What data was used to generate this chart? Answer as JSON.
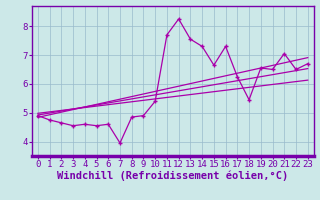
{
  "xlabel": "Windchill (Refroidissement éolien,°C)",
  "bg_color": "#cce8e8",
  "line_color": "#aa00aa",
  "grid_color": "#99bbcc",
  "axis_bar_color": "#7700aa",
  "x_data": [
    0,
    1,
    2,
    3,
    4,
    5,
    6,
    7,
    8,
    9,
    10,
    11,
    12,
    13,
    14,
    15,
    16,
    17,
    18,
    19,
    20,
    21,
    22,
    23
  ],
  "y_data": [
    4.9,
    4.75,
    4.65,
    4.55,
    4.6,
    4.55,
    4.6,
    3.95,
    4.85,
    4.9,
    5.4,
    7.7,
    8.25,
    7.55,
    7.3,
    6.65,
    7.3,
    6.25,
    5.45,
    6.55,
    6.5,
    7.05,
    6.5,
    6.7
  ],
  "trend1": [
    4.98,
    5.03,
    5.08,
    5.13,
    5.18,
    5.23,
    5.28,
    5.33,
    5.38,
    5.43,
    5.48,
    5.53,
    5.58,
    5.63,
    5.68,
    5.73,
    5.78,
    5.83,
    5.88,
    5.93,
    5.98,
    6.03,
    6.08,
    6.13
  ],
  "trend2": [
    4.92,
    4.99,
    5.06,
    5.13,
    5.2,
    5.27,
    5.34,
    5.41,
    5.48,
    5.55,
    5.62,
    5.69,
    5.76,
    5.83,
    5.9,
    5.97,
    6.04,
    6.11,
    6.18,
    6.25,
    6.32,
    6.39,
    6.46,
    6.53
  ],
  "trend3": [
    4.84,
    4.93,
    5.02,
    5.11,
    5.2,
    5.29,
    5.38,
    5.47,
    5.56,
    5.65,
    5.74,
    5.83,
    5.92,
    6.01,
    6.1,
    6.19,
    6.28,
    6.37,
    6.46,
    6.55,
    6.64,
    6.73,
    6.82,
    6.91
  ],
  "ylim": [
    3.5,
    8.7
  ],
  "xlim": [
    -0.5,
    23.5
  ],
  "yticks": [
    4,
    5,
    6,
    7,
    8
  ],
  "xticks": [
    0,
    1,
    2,
    3,
    4,
    5,
    6,
    7,
    8,
    9,
    10,
    11,
    12,
    13,
    14,
    15,
    16,
    17,
    18,
    19,
    20,
    21,
    22,
    23
  ],
  "tick_fontsize": 6.5,
  "xlabel_fontsize": 7.5
}
